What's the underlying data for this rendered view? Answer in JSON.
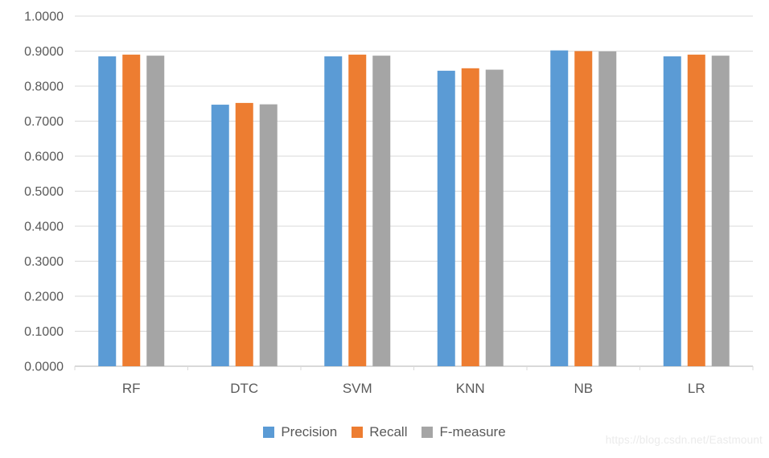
{
  "chart_data": {
    "type": "bar",
    "title": "",
    "xlabel": "",
    "ylabel": "",
    "categories": [
      "RF",
      "DTC",
      "SVM",
      "KNN",
      "NB",
      "LR"
    ],
    "series": [
      {
        "name": "Precision",
        "color": "#5B9BD5",
        "values": [
          0.885,
          0.747,
          0.885,
          0.844,
          0.902,
          0.885
        ]
      },
      {
        "name": "Recall",
        "color": "#ED7D31",
        "values": [
          0.89,
          0.752,
          0.89,
          0.851,
          0.9,
          0.89
        ]
      },
      {
        "name": "F-measure",
        "color": "#A5A5A5",
        "values": [
          0.887,
          0.748,
          0.887,
          0.847,
          0.899,
          0.887
        ]
      }
    ],
    "ylim": [
      0,
      1
    ],
    "ytick_step": 0.1,
    "ytick_labels": [
      "0.0000",
      "0.1000",
      "0.2000",
      "0.3000",
      "0.4000",
      "0.5000",
      "0.6000",
      "0.7000",
      "0.8000",
      "0.9000",
      "1.0000"
    ],
    "grid": true,
    "legend_position": "bottom"
  },
  "colors": {
    "gridline": "#D9D9D9",
    "axis_line": "#D9D9D9",
    "axis_text": "#595959",
    "background": "#FFFFFF",
    "watermark_text": "#EBEBEB"
  },
  "watermark": "https://blog.csdn.net/Eastmount"
}
